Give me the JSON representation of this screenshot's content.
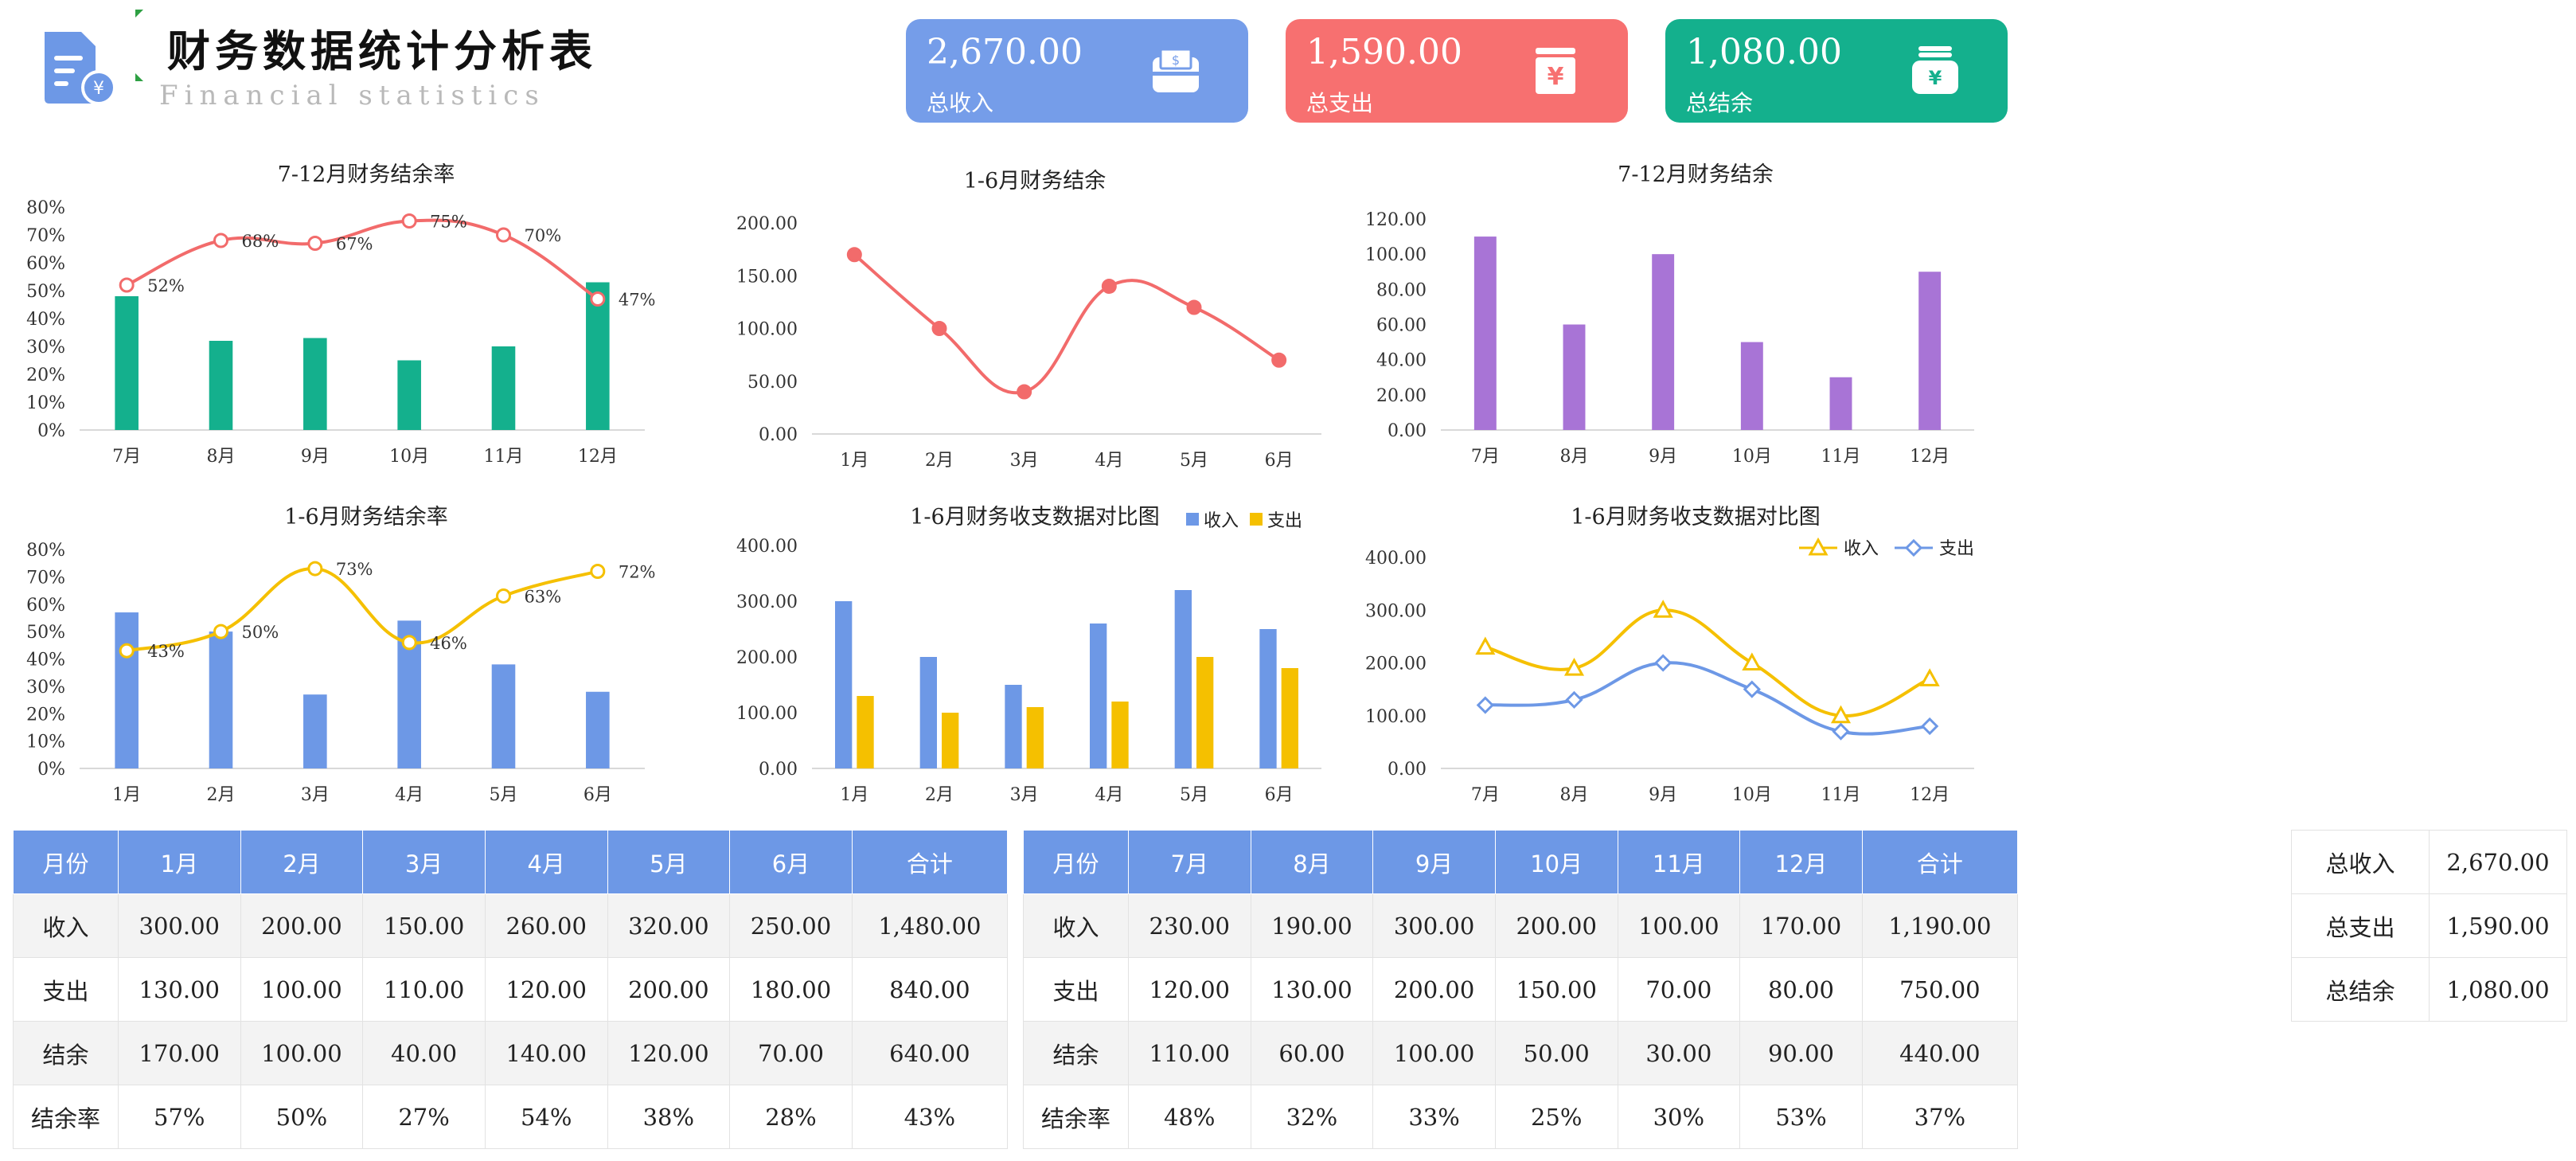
{
  "header": {
    "title": "财务数据统计分析表",
    "subtitle": "Financial statistics"
  },
  "cards": [
    {
      "value": "2,670.00",
      "label": "总收入",
      "icon": "money-box-icon",
      "color": "#759de9"
    },
    {
      "value": "1,590.00",
      "label": "总支出",
      "icon": "yuan-bill-icon",
      "color": "#f77070"
    },
    {
      "value": "1,080.00",
      "label": "总结余",
      "icon": "yuan-purse-icon",
      "color": "#14b08d"
    }
  ],
  "colors": {
    "blue": "#6d98e6",
    "red": "#f26b6b",
    "green": "#14b08d",
    "purple": "#a874d6",
    "yellow": "#f5c000",
    "grid": "#e6e6e6"
  },
  "chart_data": [
    {
      "id": "c1",
      "type": "bar+line",
      "title": "7-12月财务结余率",
      "categories": [
        "7月",
        "8月",
        "9月",
        "10月",
        "11月",
        "12月"
      ],
      "bars": [
        48,
        32,
        33,
        25,
        30,
        53
      ],
      "line": [
        52,
        68,
        67,
        75,
        70,
        47
      ],
      "line_labels": [
        "52%",
        "68%",
        "67%",
        "75%",
        "70%",
        "47%"
      ],
      "ylim": [
        0,
        80
      ],
      "yticks": [
        "0%",
        "10%",
        "20%",
        "30%",
        "40%",
        "50%",
        "60%",
        "70%",
        "80%"
      ],
      "bar_color": "#14b08d",
      "line_color": "#f26b6b"
    },
    {
      "id": "c2",
      "type": "line",
      "title": "1-6月财务结余",
      "categories": [
        "1月",
        "2月",
        "3月",
        "4月",
        "5月",
        "6月"
      ],
      "values": [
        170,
        100,
        40,
        140,
        120,
        70
      ],
      "ylim": [
        0,
        200
      ],
      "yticks": [
        "0.00",
        "50.00",
        "100.00",
        "150.00",
        "200.00"
      ],
      "line_color": "#f26b6b"
    },
    {
      "id": "c3",
      "type": "bar",
      "title": "7-12月财务结余",
      "categories": [
        "7月",
        "8月",
        "9月",
        "10月",
        "11月",
        "12月"
      ],
      "values": [
        110,
        60,
        100,
        50,
        30,
        90
      ],
      "ylim": [
        0,
        120
      ],
      "yticks": [
        "0.00",
        "20.00",
        "40.00",
        "60.00",
        "80.00",
        "100.00",
        "120.00"
      ],
      "bar_color": "#a874d6"
    },
    {
      "id": "c4",
      "type": "bar+line",
      "title": "1-6月财务结余率",
      "categories": [
        "1月",
        "2月",
        "3月",
        "4月",
        "5月",
        "6月"
      ],
      "bars": [
        57,
        50,
        27,
        54,
        38,
        28
      ],
      "line": [
        43,
        50,
        73,
        46,
        63,
        72
      ],
      "line_labels": [
        "43%",
        "50%",
        "73%",
        "46%",
        "63%",
        "72%"
      ],
      "ylim": [
        0,
        80
      ],
      "yticks": [
        "0%",
        "10%",
        "20%",
        "30%",
        "40%",
        "50%",
        "60%",
        "70%",
        "80%"
      ],
      "bar_color": "#6d98e6",
      "line_color": "#f5c000"
    },
    {
      "id": "c5",
      "type": "bar",
      "title": "1-6月财务收支数据对比图",
      "categories": [
        "1月",
        "2月",
        "3月",
        "4月",
        "5月",
        "6月"
      ],
      "series": [
        {
          "name": "收入",
          "values": [
            300,
            200,
            150,
            260,
            320,
            250
          ],
          "color": "#6d98e6"
        },
        {
          "name": "支出",
          "values": [
            130,
            100,
            110,
            120,
            200,
            180
          ],
          "color": "#f5c000"
        }
      ],
      "legend": "top-right",
      "ylim": [
        0,
        400
      ],
      "yticks": [
        "0.00",
        "100.00",
        "200.00",
        "300.00",
        "400.00"
      ]
    },
    {
      "id": "c6",
      "type": "line",
      "title": "1-6月财务收支数据对比图",
      "categories": [
        "7月",
        "8月",
        "9月",
        "10月",
        "11月",
        "12月"
      ],
      "series": [
        {
          "name": "收入",
          "values": [
            230,
            190,
            300,
            200,
            100,
            170
          ],
          "color": "#f5c000",
          "marker": "triangle"
        },
        {
          "name": "支出",
          "values": [
            120,
            130,
            200,
            150,
            70,
            80
          ],
          "color": "#6d98e6",
          "marker": "diamond"
        }
      ],
      "legend": "top-right",
      "ylim": [
        0,
        400
      ],
      "yticks": [
        "0.00",
        "100.00",
        "200.00",
        "300.00",
        "400.00"
      ]
    }
  ],
  "table1": {
    "header": [
      "月份",
      "1月",
      "2月",
      "3月",
      "4月",
      "5月",
      "6月",
      "合计"
    ],
    "rows": [
      [
        "收入",
        "300.00",
        "200.00",
        "150.00",
        "260.00",
        "320.00",
        "250.00",
        "1,480.00"
      ],
      [
        "支出",
        "130.00",
        "100.00",
        "110.00",
        "120.00",
        "200.00",
        "180.00",
        "840.00"
      ],
      [
        "结余",
        "170.00",
        "100.00",
        "40.00",
        "140.00",
        "120.00",
        "70.00",
        "640.00"
      ],
      [
        "结余率",
        "57%",
        "50%",
        "27%",
        "54%",
        "38%",
        "28%",
        "43%"
      ]
    ]
  },
  "table2": {
    "header": [
      "月份",
      "7月",
      "8月",
      "9月",
      "10月",
      "11月",
      "12月",
      "合计"
    ],
    "rows": [
      [
        "收入",
        "230.00",
        "190.00",
        "300.00",
        "200.00",
        "100.00",
        "170.00",
        "1,190.00"
      ],
      [
        "支出",
        "120.00",
        "130.00",
        "200.00",
        "150.00",
        "70.00",
        "80.00",
        "750.00"
      ],
      [
        "结余",
        "110.00",
        "60.00",
        "100.00",
        "50.00",
        "30.00",
        "90.00",
        "440.00"
      ],
      [
        "结余率",
        "48%",
        "32%",
        "33%",
        "25%",
        "30%",
        "53%",
        "37%"
      ]
    ]
  },
  "summary": [
    [
      "总收入",
      "2,670.00"
    ],
    [
      "总支出",
      "1,590.00"
    ],
    [
      "总结余",
      "1,080.00"
    ]
  ]
}
